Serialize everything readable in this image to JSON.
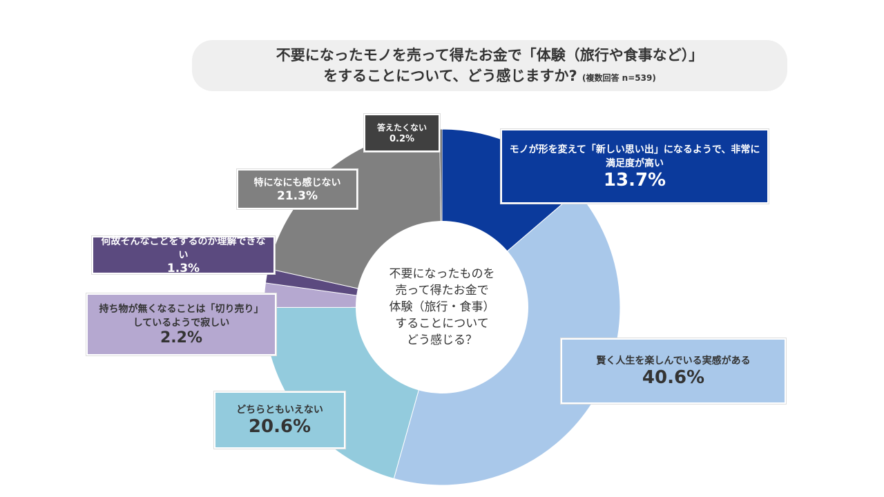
{
  "chart_data": {
    "type": "donut",
    "title": "不要になったモノを売って得たお金で「体験（旅行や食事など）」",
    "subtitle": "をすることについて、どう感じますか?",
    "note": "(複数回答 n=539)",
    "center_text": [
      "不要になったものを",
      "売って得たお金で",
      "体験（旅行・食事）",
      "することについて",
      "どう感じる？"
    ],
    "categories": [
      "モノが形を変えて「新しい思い出」になるようで、非常に満足度が高い",
      "賢く人生を楽しんでいる実感がある",
      "どちらともいえない",
      "持ち物が無くなることは「切り売り」しているようで寂しい",
      "何故そんなことをするのか理解できない",
      "特になにも感じない",
      "答えたくない"
    ],
    "values": [
      13.7,
      40.6,
      20.6,
      2.2,
      1.3,
      21.3,
      0.2
    ],
    "value_labels": [
      "13.7%",
      "40.6%",
      "20.6%",
      "2.2%",
      "1.3%",
      "21.3%",
      "0.2%"
    ],
    "colors": [
      "#0b3a9c",
      "#a9c8ea",
      "#93cbdd",
      "#b5a8d0",
      "#5b4a7f",
      "#808080",
      "#404040"
    ]
  }
}
